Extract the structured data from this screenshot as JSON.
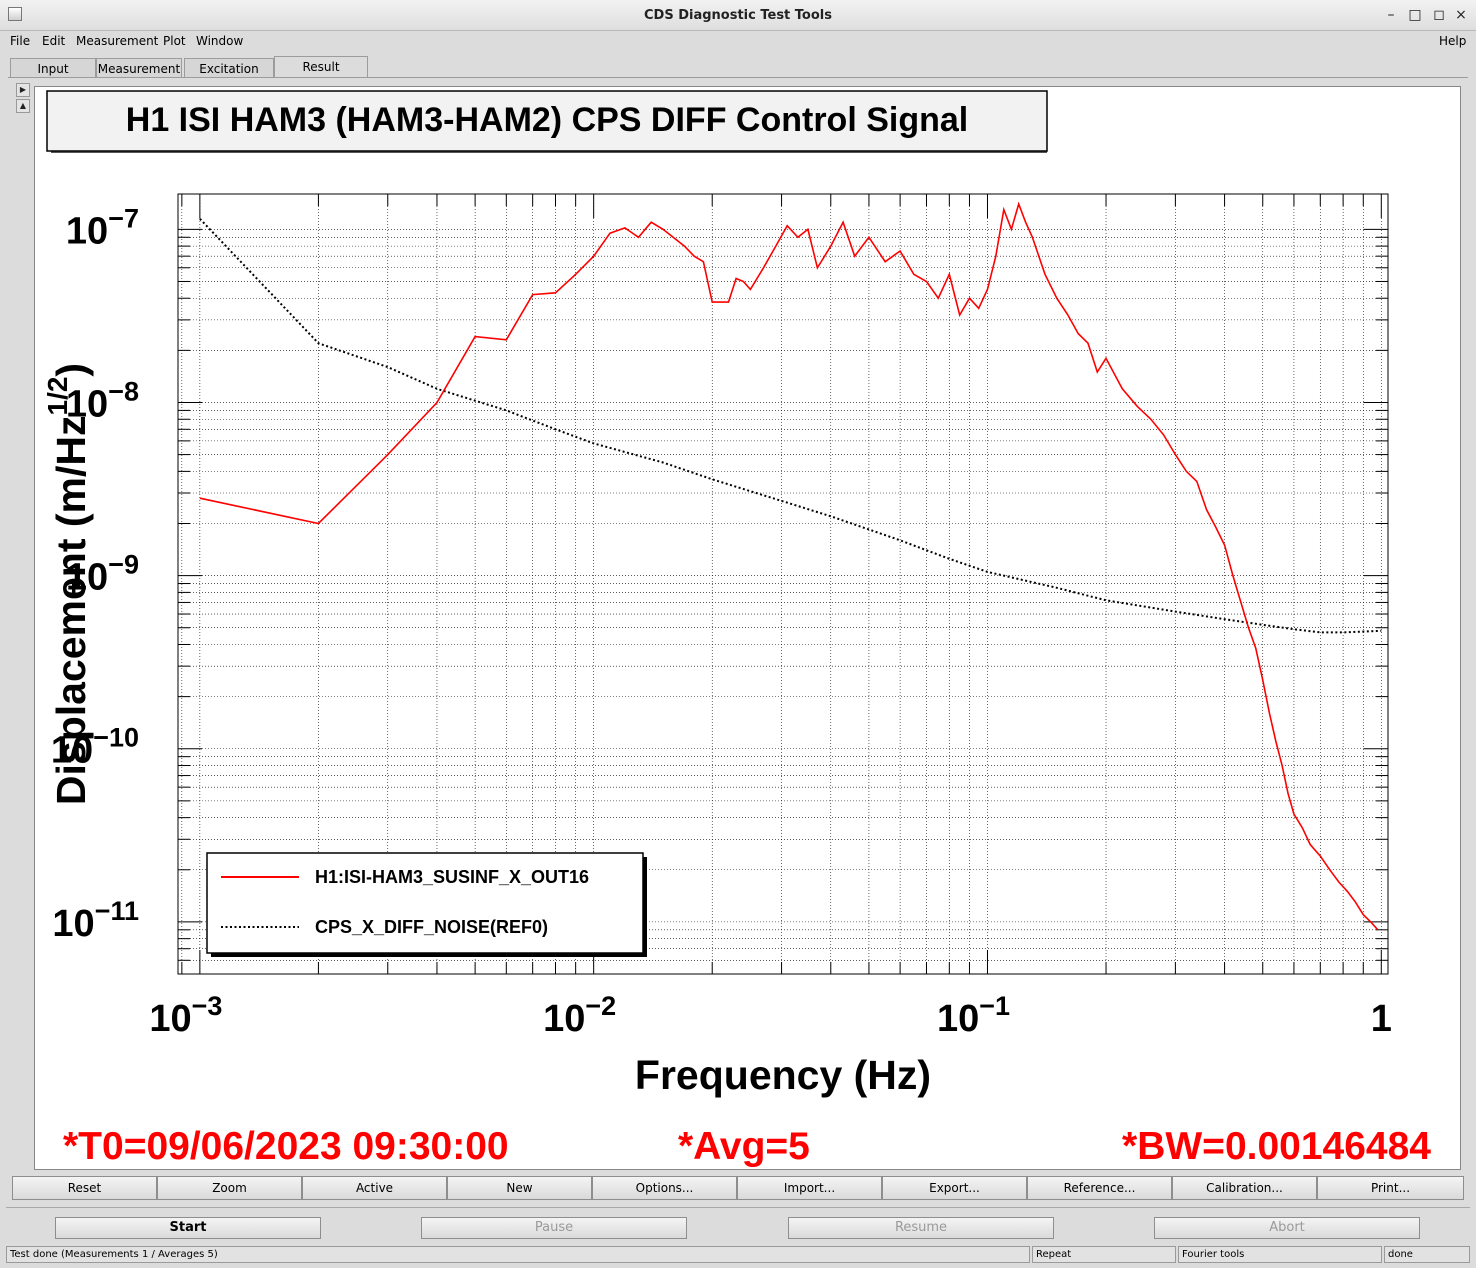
{
  "window": {
    "title": "CDS Diagnostic Test Tools",
    "controls": {
      "minimize": "–",
      "maximize": "□",
      "close": "×"
    }
  },
  "menu": {
    "file": "File",
    "edit": "Edit",
    "measurement": "Measurement",
    "plot": "Plot",
    "window": "Window",
    "help": "Help"
  },
  "tabs": [
    "Input",
    "Measurement",
    "Excitation",
    "Result"
  ],
  "active_tab": "Result",
  "plot": {
    "title": "H1 ISI HAM3 (HAM3-HAM2) CPS DIFF Control Signal",
    "annotations": {
      "t0": "*T0=09/06/2023 09:30:00",
      "avg": "*Avg=5",
      "bw": "*BW=0.00146484"
    },
    "colors": {
      "signal": "#ff0000",
      "reference": "#000000",
      "annotation": "#ff0000",
      "grid": "#000000"
    }
  },
  "chart_data": {
    "type": "line",
    "title": "H1 ISI HAM3 (HAM3-HAM2) CPS DIFF Control Signal",
    "xlabel": "Frequency (Hz)",
    "ylabel": "Displacement (m/Hz^{1/2})",
    "xscale": "log",
    "yscale": "log",
    "xlim": [
      0.00088,
      1.04
    ],
    "ylim": [
      5e-12,
      1.6e-07
    ],
    "grid": true,
    "legend_placement": "bottom-left",
    "x_ticks": [
      {
        "label": "10",
        "exp": "−3"
      },
      {
        "label": "10",
        "exp": "−2"
      },
      {
        "label": "10",
        "exp": "−1"
      },
      {
        "label": "1",
        "exp": ""
      }
    ],
    "y_ticks": [
      {
        "label": "10",
        "exp": "−7"
      },
      {
        "label": "10",
        "exp": "−8"
      },
      {
        "label": "10",
        "exp": "−9"
      },
      {
        "label": "10",
        "exp": "−10"
      },
      {
        "label": "10",
        "exp": "−11"
      }
    ],
    "series": [
      {
        "name": "H1:ISI-HAM3_SUSINF_X_OUT16",
        "style": "solid",
        "color": "#ff0000",
        "x": [
          0.001,
          0.002,
          0.003,
          0.004,
          0.005,
          0.006,
          0.007,
          0.008,
          0.009,
          0.01,
          0.011,
          0.012,
          0.013,
          0.014,
          0.015,
          0.017,
          0.018,
          0.019,
          0.02,
          0.022,
          0.023,
          0.024,
          0.025,
          0.027,
          0.029,
          0.031,
          0.033,
          0.035,
          0.037,
          0.04,
          0.043,
          0.046,
          0.05,
          0.055,
          0.06,
          0.065,
          0.07,
          0.075,
          0.08,
          0.085,
          0.09,
          0.095,
          0.1,
          0.105,
          0.11,
          0.115,
          0.12,
          0.125,
          0.13,
          0.14,
          0.15,
          0.16,
          0.17,
          0.18,
          0.19,
          0.2,
          0.22,
          0.24,
          0.26,
          0.28,
          0.3,
          0.32,
          0.34,
          0.36,
          0.38,
          0.4,
          0.42,
          0.44,
          0.46,
          0.48,
          0.5,
          0.52,
          0.54,
          0.56,
          0.58,
          0.6,
          0.63,
          0.66,
          0.7,
          0.74,
          0.78,
          0.82,
          0.86,
          0.9,
          0.94,
          0.98
        ],
        "y": [
          2.8e-09,
          2e-09,
          5e-09,
          1e-08,
          2.4e-08,
          2.3e-08,
          4.2e-08,
          4.3e-08,
          5.5e-08,
          7e-08,
          9.5e-08,
          1.02e-07,
          9e-08,
          1.1e-07,
          1e-07,
          8e-08,
          7e-08,
          6.5e-08,
          3.8e-08,
          3.8e-08,
          5.2e-08,
          5e-08,
          4.5e-08,
          6e-08,
          8e-08,
          1.05e-07,
          9e-08,
          1e-07,
          6e-08,
          8e-08,
          1.1e-07,
          7e-08,
          9e-08,
          6.5e-08,
          7.5e-08,
          5.5e-08,
          5e-08,
          4e-08,
          5.5e-08,
          3.2e-08,
          4e-08,
          3.5e-08,
          4.5e-08,
          7e-08,
          1.3e-07,
          1e-07,
          1.4e-07,
          1.1e-07,
          9e-08,
          5.5e-08,
          4e-08,
          3.2e-08,
          2.5e-08,
          2.2e-08,
          1.5e-08,
          1.8e-08,
          1.2e-08,
          9.5e-09,
          8e-09,
          6.5e-09,
          5e-09,
          4e-09,
          3.5e-09,
          2.4e-09,
          1.9e-09,
          1.5e-09,
          1e-09,
          7e-10,
          5e-10,
          3.8e-10,
          2.5e-10,
          1.6e-10,
          1.1e-10,
          8e-11,
          5.5e-11,
          4.2e-11,
          3.5e-11,
          2.8e-11,
          2.4e-11,
          2e-11,
          1.7e-11,
          1.5e-11,
          1.3e-11,
          1.1e-11,
          1e-11,
          9e-12
        ]
      },
      {
        "name": "CPS_X_DIFF_NOISE(REF0)",
        "style": "dotted",
        "color": "#000000",
        "x": [
          0.001,
          0.002,
          0.003,
          0.004,
          0.006,
          0.008,
          0.01,
          0.015,
          0.02,
          0.03,
          0.04,
          0.06,
          0.08,
          0.1,
          0.15,
          0.2,
          0.3,
          0.4,
          0.5,
          0.6,
          0.7,
          0.8,
          1.0
        ],
        "y": [
          1.15e-07,
          2.2e-08,
          1.6e-08,
          1.2e-08,
          9e-09,
          7e-09,
          5.8e-09,
          4.5e-09,
          3.6e-09,
          2.7e-09,
          2.2e-09,
          1.6e-09,
          1.25e-09,
          1.05e-09,
          8.5e-10,
          7.2e-10,
          6.2e-10,
          5.6e-10,
          5.2e-10,
          4.9e-10,
          4.7e-10,
          4.7e-10,
          4.8e-10
        ]
      }
    ]
  },
  "plot_buttons": [
    "Reset",
    "Zoom",
    "Active",
    "New",
    "Options...",
    "Import...",
    "Export...",
    "Reference...",
    "Calibration...",
    "Print..."
  ],
  "controls": [
    "Start",
    "Pause",
    "Resume",
    "Abort"
  ],
  "status": {
    "message": "Test done (Measurements 1 / Averages 5)",
    "mode": "Repeat",
    "tool": "Fourier tools",
    "state": "done"
  }
}
